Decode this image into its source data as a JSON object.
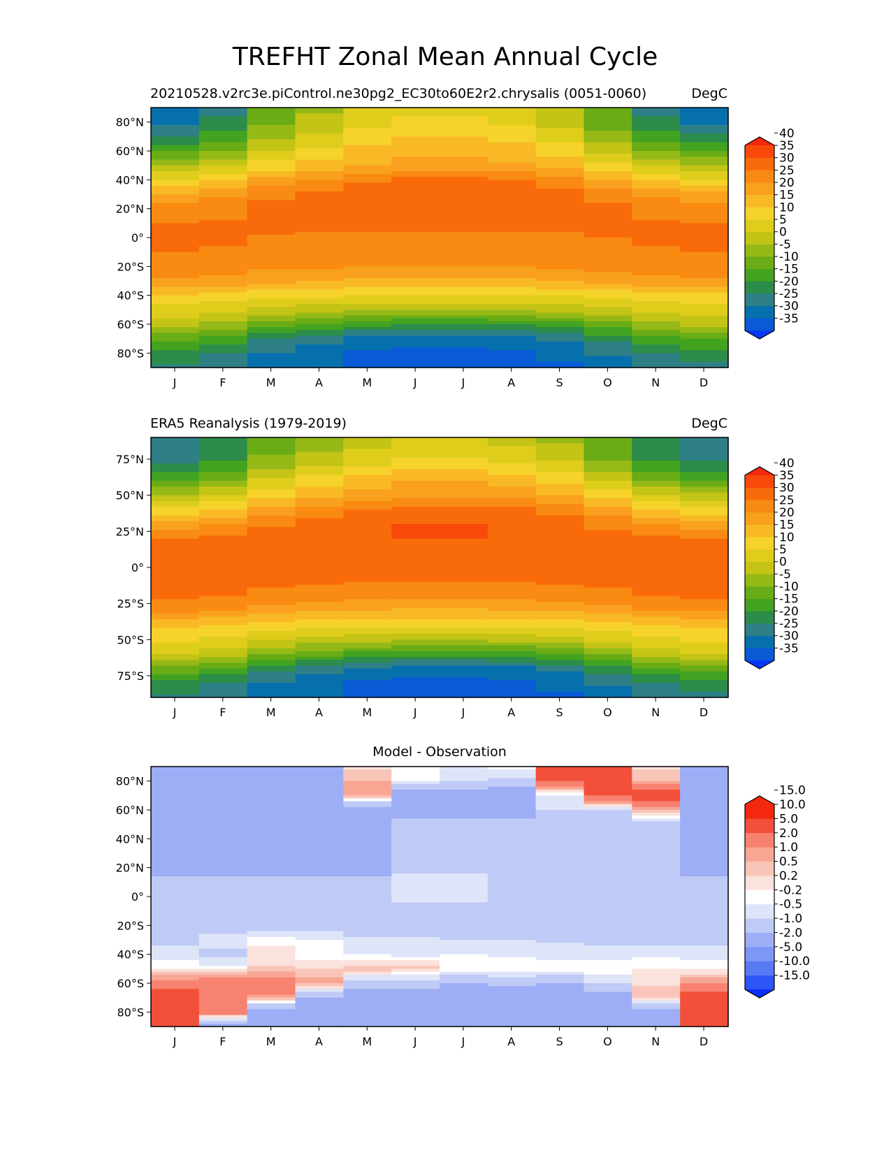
{
  "figure": {
    "title": "TREFHT Zonal Mean Annual Cycle"
  },
  "months": [
    "J",
    "F",
    "M",
    "A",
    "M",
    "J",
    "J",
    "A",
    "S",
    "O",
    "N",
    "D"
  ],
  "colors": {
    "temperature_scale": [
      "#0a37f6",
      "#0a5ad6",
      "#0670ad",
      "#2f7f86",
      "#2c8c4a",
      "#42a321",
      "#69ac15",
      "#95b917",
      "#c4c416",
      "#dfcd1c",
      "#f6d32a",
      "#f9b925",
      "#f9a11e",
      "#f98b13",
      "#f96a0a",
      "#f8490a",
      "#f3280f"
    ],
    "difference_scale": [
      "#0a2ef6",
      "#2e55f6",
      "#5779f4",
      "#7d97f6",
      "#9daef6",
      "#bfcbf6",
      "#dfe5f9",
      "#ffffff",
      "#fbe2dc",
      "#f9c5b8",
      "#f8a694",
      "#f7826f",
      "#f2503a",
      "#f3280f"
    ]
  },
  "chart_data": [
    {
      "type": "heatmap",
      "title_left": "20210528.v2rc3e.piControl.ne30pg2_EC30to60E2r2.chrysalis (0051-0060)",
      "title_right": "DegC",
      "xlabel": "",
      "ylabel": "",
      "x_ticks": [
        "J",
        "F",
        "M",
        "A",
        "M",
        "J",
        "J",
        "A",
        "S",
        "O",
        "N",
        "D"
      ],
      "y_ticks": [
        "80°N",
        "60°N",
        "40°N",
        "20°N",
        "0°",
        "20°S",
        "40°S",
        "60°S",
        "80°S"
      ],
      "y_tick_values": [
        80,
        60,
        40,
        20,
        0,
        -20,
        -40,
        -60,
        -80
      ],
      "ylim": [
        -90,
        90
      ],
      "colorbar": {
        "levels": [
          -40,
          -35,
          -30,
          -25,
          -20,
          -15,
          -10,
          -5,
          0,
          5,
          10,
          15,
          20,
          25,
          30,
          35,
          40,
          45
        ],
        "labels": [
          "-35",
          "-30",
          "-25",
          "-20",
          "-15",
          "-10",
          "-5",
          "0",
          "5",
          "10",
          "15",
          "20",
          "25",
          "30",
          "35",
          "40"
        ],
        "label_values": [
          -35,
          -30,
          -25,
          -20,
          -15,
          -10,
          -5,
          0,
          5,
          10,
          15,
          20,
          25,
          30,
          35,
          40
        ],
        "extend": "both"
      },
      "model": {
        "lat_nodes": [
          -90,
          -80,
          -70,
          -60,
          -50,
          -40,
          -30,
          -20,
          -10,
          0,
          10,
          20,
          30,
          40,
          50,
          60,
          70,
          80,
          90
        ],
        "jan_profile": [
          -26,
          -22,
          -14,
          -3,
          3,
          9,
          19,
          23,
          25,
          26,
          25,
          23,
          16,
          5,
          -5,
          -16,
          -25,
          -32,
          -33
        ],
        "jul_profile": [
          -38,
          -37,
          -33,
          -20,
          -5,
          5,
          14,
          20,
          23,
          24,
          26,
          29,
          30,
          26,
          17,
          14,
          10,
          6,
          3
        ],
        "month_weights": [
          0,
          0.2,
          0.55,
          0.75,
          0.92,
          1,
          1,
          0.95,
          0.8,
          0.5,
          0.2,
          0.02
        ]
      }
    },
    {
      "type": "heatmap",
      "title_left": "ERA5 Reanalysis (1979-2019)",
      "title_right": "DegC",
      "xlabel": "",
      "ylabel": "",
      "x_ticks": [
        "J",
        "F",
        "M",
        "A",
        "M",
        "J",
        "J",
        "A",
        "S",
        "O",
        "N",
        "D"
      ],
      "y_ticks": [
        "75°N",
        "50°N",
        "25°N",
        "0°",
        "25°S",
        "50°S",
        "75°S"
      ],
      "y_tick_values": [
        75,
        50,
        25,
        0,
        -25,
        -50,
        -75
      ],
      "ylim": [
        -90,
        90
      ],
      "colorbar": {
        "levels": [
          -40,
          -35,
          -30,
          -25,
          -20,
          -15,
          -10,
          -5,
          0,
          5,
          10,
          15,
          20,
          25,
          30,
          35,
          40,
          45
        ],
        "labels": [
          "-35",
          "-30",
          "-25",
          "-20",
          "-15",
          "-10",
          "-5",
          "0",
          "5",
          "10",
          "15",
          "20",
          "25",
          "30",
          "35",
          "40"
        ],
        "label_values": [
          -35,
          -30,
          -25,
          -20,
          -15,
          -10,
          -5,
          0,
          5,
          10,
          15,
          20,
          25,
          30,
          35,
          40
        ],
        "extend": "both"
      },
      "model": {
        "lat_nodes": [
          -90,
          -80,
          -70,
          -60,
          -50,
          -40,
          -30,
          -20,
          -10,
          0,
          10,
          20,
          30,
          40,
          50,
          60,
          70,
          80,
          90
        ],
        "jan_profile": [
          -26,
          -22,
          -12,
          0,
          6,
          11,
          21,
          26,
          27,
          27,
          27,
          25,
          17,
          6,
          -4,
          -16,
          -24,
          -29,
          -30
        ],
        "jul_profile": [
          -38,
          -37,
          -33,
          -18,
          -4,
          6,
          14,
          21,
          25,
          27,
          28,
          30,
          30,
          27,
          19,
          15,
          8,
          3,
          0
        ],
        "month_weights": [
          0,
          0.2,
          0.55,
          0.75,
          0.92,
          1,
          1,
          0.95,
          0.8,
          0.5,
          0.2,
          0.02
        ]
      }
    },
    {
      "type": "heatmap",
      "title_center": "Model - Observation",
      "xlabel": "",
      "ylabel": "",
      "x_ticks": [
        "J",
        "F",
        "M",
        "A",
        "M",
        "J",
        "J",
        "A",
        "S",
        "O",
        "N",
        "D"
      ],
      "y_ticks": [
        "80°N",
        "60°N",
        "40°N",
        "20°N",
        "0°",
        "20°S",
        "40°S",
        "60°S",
        "80°S"
      ],
      "y_tick_values": [
        80,
        60,
        40,
        20,
        0,
        -20,
        -40,
        -60,
        -80
      ],
      "ylim": [
        -90,
        90
      ],
      "colorbar": {
        "levels": [
          -20,
          -15,
          -10,
          -5,
          -2,
          -1,
          -0.5,
          -0.2,
          0.2,
          0.5,
          1,
          2,
          5,
          10,
          15,
          20
        ],
        "labels": [
          "-15.0",
          "-10.0",
          "-5.0",
          "-2.0",
          "-1.0",
          "-0.5",
          "-0.2",
          "0.2",
          "0.5",
          "1.0",
          "2.0",
          "5.0",
          "10.0",
          "15.0"
        ],
        "label_values": [
          -15,
          -10,
          -5,
          -2,
          -1,
          -0.5,
          -0.2,
          0.2,
          0.5,
          1,
          2,
          5,
          10,
          15
        ],
        "extend": "both"
      },
      "model": {
        "lat_nodes": [
          -90,
          -80,
          -70,
          -60,
          -50,
          -40,
          -30,
          -20,
          -10,
          0,
          10,
          20,
          30,
          40,
          50,
          60,
          70,
          80,
          90
        ],
        "month_profiles": [
          [
            3,
            3,
            3,
            1.5,
            -0.3,
            -0.7,
            -1.2,
            -1.5,
            -1.5,
            -1.5,
            -1.5,
            -3,
            -3,
            -3,
            -3,
            -3,
            -3,
            -4,
            -4
          ],
          [
            -3,
            1.5,
            1.5,
            2,
            -0.3,
            -1.2,
            -0.6,
            -1.5,
            -1.5,
            -1.5,
            -1.5,
            -3,
            -3,
            -3,
            -3,
            -3,
            -3,
            -4,
            -4
          ],
          [
            -3,
            -3,
            0.8,
            1.5,
            0.3,
            -0.1,
            -0.3,
            -1.5,
            -1.5,
            -1.5,
            -1.5,
            -3,
            -3,
            -3,
            -3,
            -3,
            -3,
            -3,
            -3
          ],
          [
            -5,
            -3,
            -2,
            0.7,
            0.2,
            -0.4,
            -0.4,
            -1.5,
            -1.5,
            -1.5,
            -1.5,
            -3,
            -3,
            -3,
            -3,
            -3,
            -3,
            -3,
            -3
          ],
          [
            -4,
            -4,
            -3,
            -1.5,
            0.4,
            -0.5,
            -0.8,
            -1.5,
            -1.5,
            -1.5,
            -1.5,
            -3,
            -3,
            -3,
            -3,
            -3,
            0.8,
            0.5,
            0.1
          ],
          [
            -5,
            -5,
            -3,
            -1.5,
            0.3,
            -0.6,
            -0.9,
            -1.5,
            -1.5,
            -0.7,
            -0.6,
            -1.4,
            -1.4,
            -1.4,
            -1.4,
            -3,
            -3,
            -0.5,
            -0.3
          ],
          [
            -5,
            -5,
            -3,
            -2,
            -0.2,
            -0.5,
            -1,
            -1.5,
            -1.5,
            -0.7,
            -0.6,
            -1.4,
            -1.4,
            -1.4,
            -1.4,
            -3,
            -3,
            -0.9,
            -0.9
          ],
          [
            -5,
            -5,
            -3,
            -1.8,
            -0.2,
            -0.6,
            -1,
            -1.5,
            -1.5,
            -1.3,
            -1.2,
            -1.4,
            -1.4,
            -1.4,
            -1.4,
            -3,
            -3,
            -1.2,
            -0.3
          ],
          [
            -4,
            -4,
            -3,
            -2,
            -0.2,
            -0.7,
            -1.1,
            -1.5,
            -1.5,
            -1.3,
            -1.3,
            -1.5,
            -1.5,
            -2,
            -2,
            -1,
            -0.7,
            2,
            2
          ],
          [
            -3,
            -3,
            -3,
            -1,
            -0.2,
            -0.8,
            -1.2,
            -1.5,
            -1.5,
            -1.5,
            -1.5,
            -1.5,
            -1.5,
            -1.5,
            -1.5,
            -1,
            2,
            3,
            3
          ],
          [
            -3,
            -3,
            0.5,
            0.1,
            -0.2,
            -0.6,
            -1.2,
            -1.5,
            -1.5,
            -1.5,
            -1.5,
            -1.5,
            -1.5,
            -1.5,
            -1.5,
            0.5,
            3,
            0.5,
            0.1
          ],
          [
            3,
            3,
            2.5,
            1,
            -0.2,
            -0.8,
            -1.2,
            -1.5,
            -1.5,
            -1.5,
            -1.5,
            -3,
            -3,
            -2.5,
            -3,
            -2.5,
            -2.5,
            -2.5,
            -2.5
          ]
        ]
      }
    }
  ]
}
